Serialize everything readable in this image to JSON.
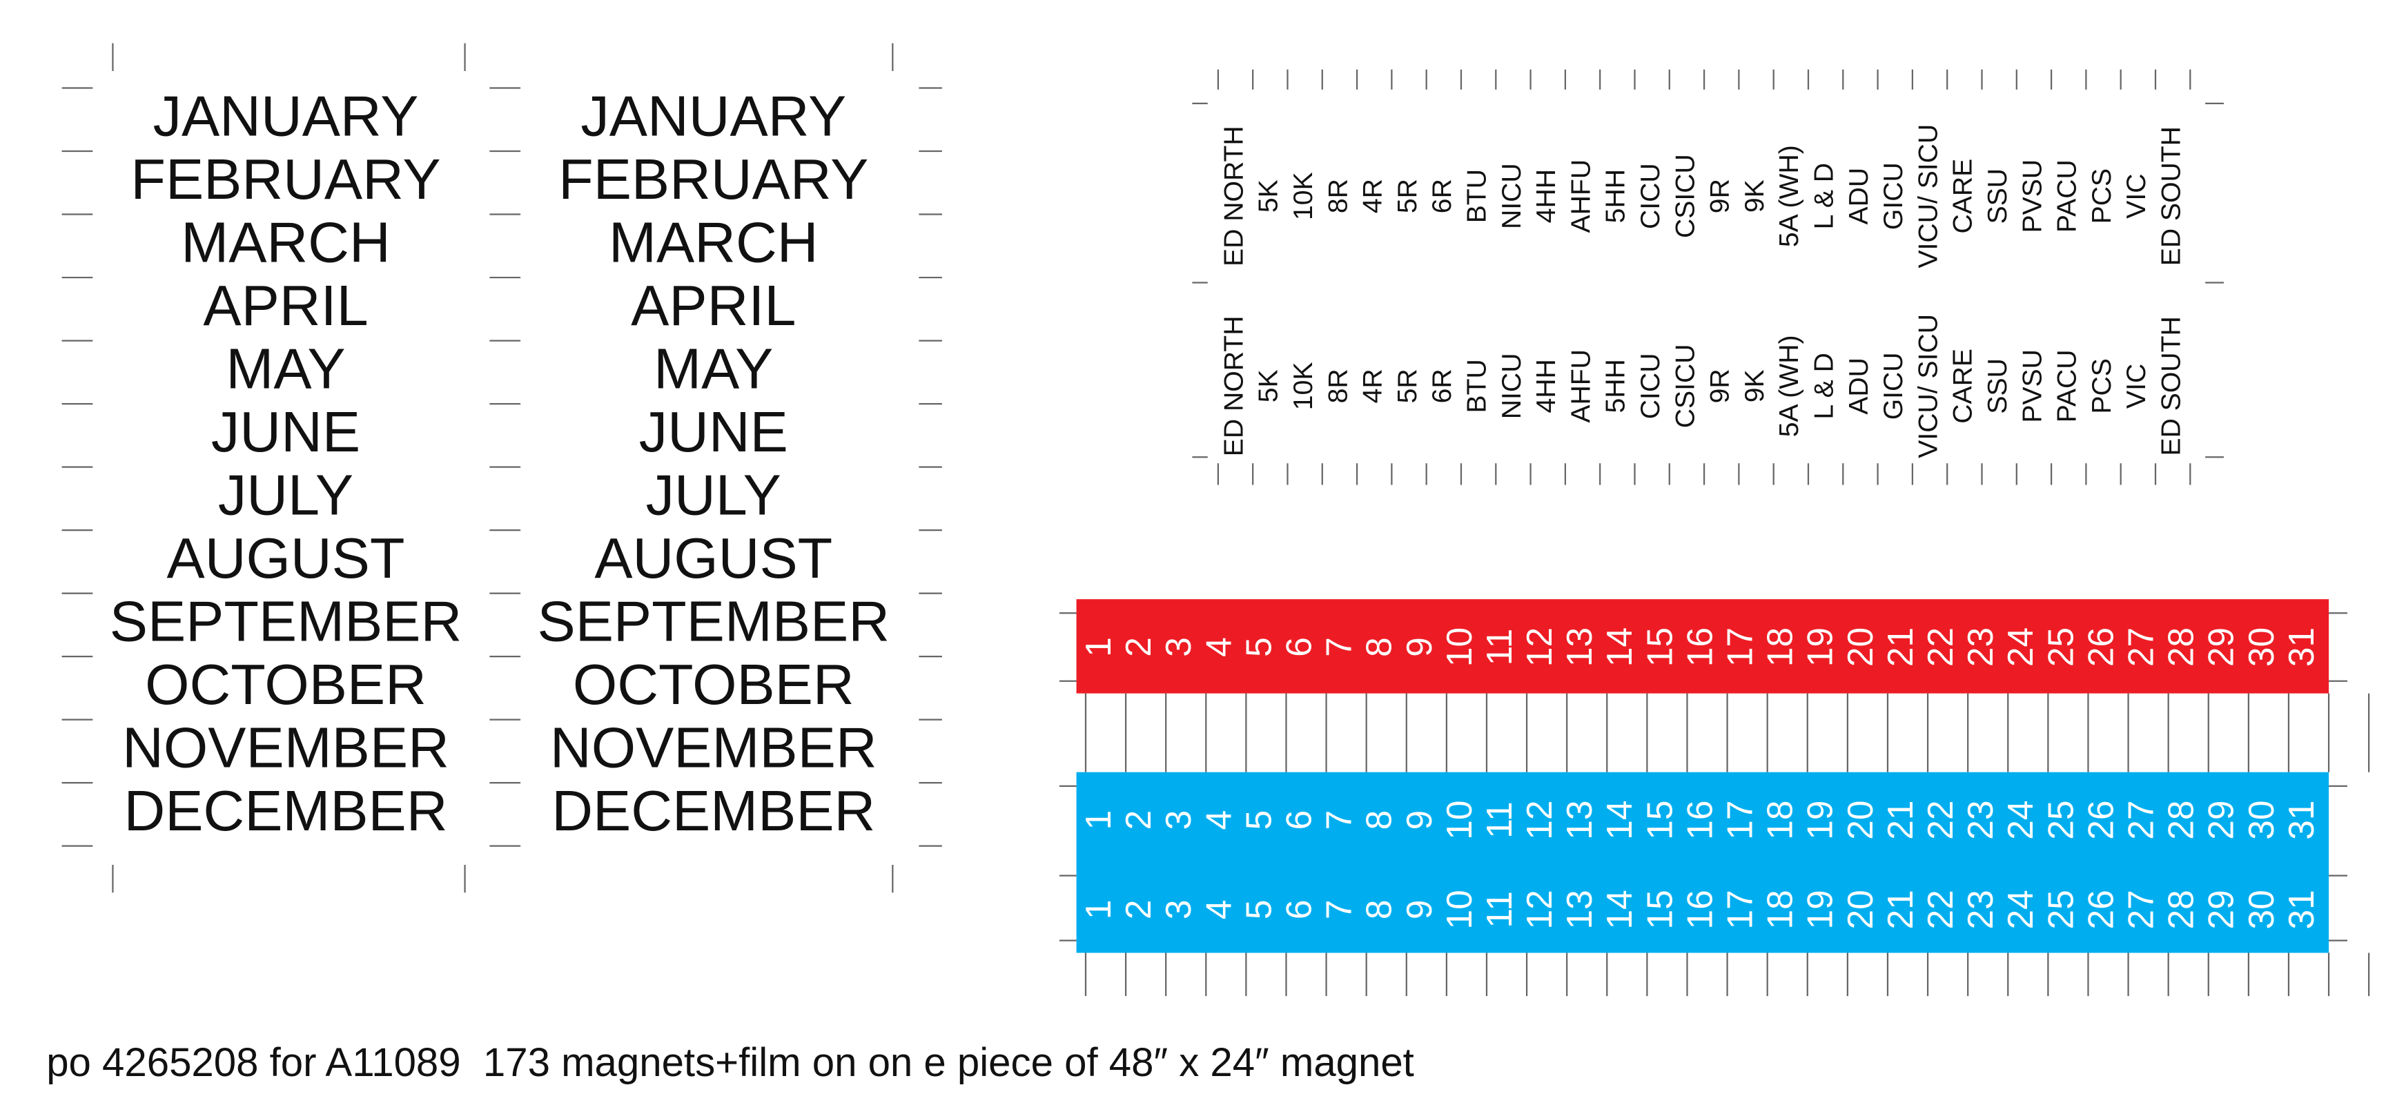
{
  "month_columns": [
    {
      "months": [
        "JANUARY",
        "FEBRUARY",
        "MARCH",
        "APRIL",
        "MAY",
        "JUNE",
        "JULY",
        "AUGUST",
        "SEPTEMBER",
        "OCTOBER",
        "NOVEMBER",
        "DECEMBER"
      ]
    },
    {
      "months": [
        "JANUARY",
        "FEBRUARY",
        "MARCH",
        "APRIL",
        "MAY",
        "JUNE",
        "JULY",
        "AUGUST",
        "SEPTEMBER",
        "OCTOBER",
        "NOVEMBER",
        "DECEMBER"
      ]
    }
  ],
  "unit_label_rows": [
    [
      "ED NORTH",
      "5K",
      "10K",
      "8R",
      "4R",
      "5R",
      "6R",
      "BTU",
      "NICU",
      "4HH",
      "AHFU",
      "5HH",
      "CICU",
      "CSICU",
      "9R",
      "9K",
      "5A (WH)",
      "L & D",
      "ADU",
      "GICU",
      "VICU/ SICU",
      "CARE",
      "SSU",
      "PVSU",
      "PACU",
      "PCS",
      "VIC",
      "ED SOUTH"
    ],
    [
      "ED NORTH",
      "5K",
      "10K",
      "8R",
      "4R",
      "5R",
      "6R",
      "BTU",
      "NICU",
      "4HH",
      "AHFU",
      "5HH",
      "CICU",
      "CSICU",
      "9R",
      "9K",
      "5A (WH)",
      "L & D",
      "ADU",
      "GICU",
      "VICU/ SICU",
      "CARE",
      "SSU",
      "PVSU",
      "PACU",
      "PCS",
      "VIC",
      "ED SOUTH"
    ]
  ],
  "number_strips": [
    {
      "color": "#ed1c24",
      "rows": [
        [
          1,
          2,
          3,
          4,
          5,
          6,
          7,
          8,
          9,
          10,
          11,
          12,
          13,
          14,
          15,
          16,
          17,
          18,
          19,
          20,
          21,
          22,
          23,
          24,
          25,
          26,
          27,
          28,
          29,
          30,
          31
        ]
      ]
    },
    {
      "color": "#00aeef",
      "rows": [
        [
          1,
          2,
          3,
          4,
          5,
          6,
          7,
          8,
          9,
          10,
          11,
          12,
          13,
          14,
          15,
          16,
          17,
          18,
          19,
          20,
          21,
          22,
          23,
          24,
          25,
          26,
          27,
          28,
          29,
          30,
          31
        ],
        [
          1,
          2,
          3,
          4,
          5,
          6,
          7,
          8,
          9,
          10,
          11,
          12,
          13,
          14,
          15,
          16,
          17,
          18,
          19,
          20,
          21,
          22,
          23,
          24,
          25,
          26,
          27,
          28,
          29,
          30,
          31
        ]
      ]
    }
  ],
  "footer": "po 4265208 for A11089  173 magnets+film on on e piece of 48″ x 24″ magnet"
}
